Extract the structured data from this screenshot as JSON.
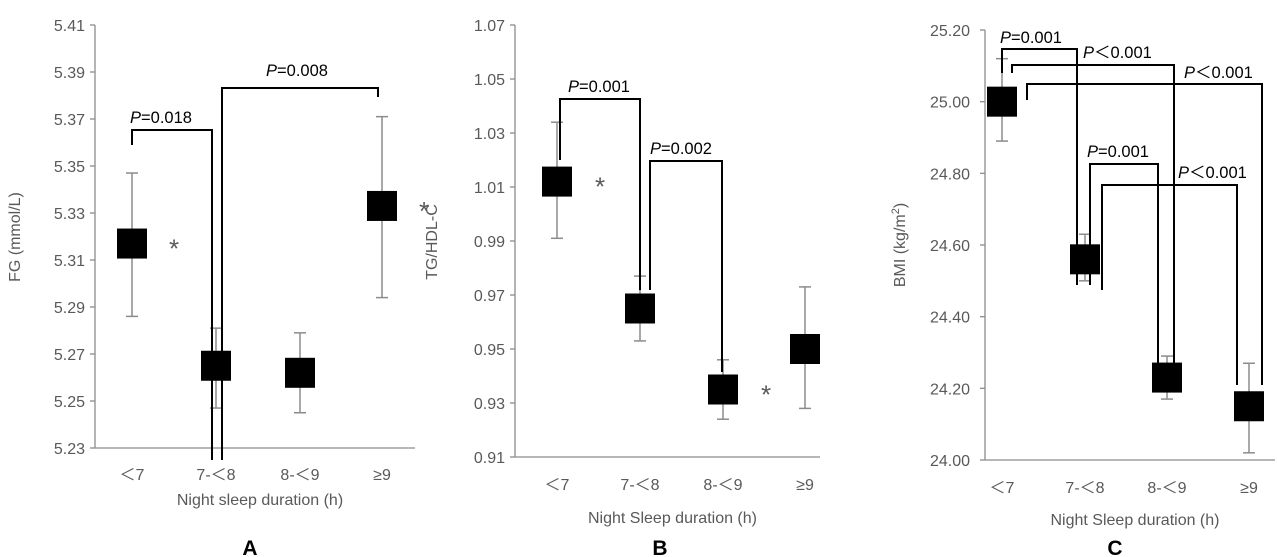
{
  "chart_data": [
    {
      "type": "scatter",
      "panel_label": "A",
      "xlabel": "Night sleep duration (h)",
      "ylabel": "FG (mmol/L)",
      "ylim": [
        5.23,
        5.41
      ],
      "yticks": [
        "5.23",
        "5.25",
        "5.27",
        "5.29",
        "5.31",
        "5.33",
        "5.35",
        "5.37",
        "5.39",
        "5.41"
      ],
      "categories": [
        "<7",
        "7-<8",
        "8-<9",
        "≥9"
      ],
      "values": [
        5.317,
        5.265,
        5.262,
        5.333
      ],
      "error_low": [
        5.286,
        5.247,
        5.245,
        5.294
      ],
      "error_high": [
        5.347,
        5.281,
        5.279,
        5.371
      ],
      "significance_marks": [
        "*",
        "",
        "",
        "*"
      ],
      "comparisons": [
        {
          "from": "<7",
          "to": "7-<8",
          "label": "P=0.018"
        },
        {
          "from": "7-<8",
          "to": "≥9",
          "label": "P=0.008"
        }
      ]
    },
    {
      "type": "scatter",
      "panel_label": "B",
      "xlabel": "Night Sleep duration (h)",
      "ylabel": "TG/HDL-C",
      "ylim": [
        0.91,
        1.07
      ],
      "yticks": [
        "0.91",
        "0.93",
        "0.95",
        "0.97",
        "0.99",
        "1.01",
        "1.03",
        "1.05",
        "1.07"
      ],
      "categories": [
        "<7",
        "7-<8",
        "8-<9",
        "≥9"
      ],
      "values": [
        1.012,
        0.965,
        0.935,
        0.95
      ],
      "error_low": [
        0.991,
        0.953,
        0.924,
        0.928
      ],
      "error_high": [
        1.034,
        0.977,
        0.946,
        0.973
      ],
      "significance_marks": [
        "*",
        "",
        "*",
        ""
      ],
      "comparisons": [
        {
          "from": "<7",
          "to": "7-<8",
          "label": "P=0.001"
        },
        {
          "from": "7-<8",
          "to": "8-<9",
          "label": "P=0.002"
        }
      ]
    },
    {
      "type": "scatter",
      "panel_label": "C",
      "xlabel": "Night Sleep duration (h)",
      "ylabel": "BMI (kg/m²)",
      "ylim": [
        24.0,
        25.2
      ],
      "yticks": [
        "24.00",
        "24.20",
        "24.40",
        "24.60",
        "24.80",
        "25.00",
        "25.20"
      ],
      "categories": [
        "<7",
        "7-<8",
        "8-<9",
        "≥9"
      ],
      "values": [
        25.0,
        24.56,
        24.23,
        24.15
      ],
      "error_low": [
        24.89,
        24.5,
        24.17,
        24.02
      ],
      "error_high": [
        25.12,
        24.63,
        24.29,
        24.27
      ],
      "significance_marks": [
        "",
        "",
        "",
        ""
      ],
      "comparisons": [
        {
          "from": "<7",
          "to": "7-<8",
          "label": "P=0.001"
        },
        {
          "from": "<7",
          "to": "8-<9",
          "label": "P<0.001"
        },
        {
          "from": "<7",
          "to": "≥9",
          "label": "P<0.001"
        },
        {
          "from": "7-<8",
          "to": "8-<9",
          "label": "P=0.001"
        },
        {
          "from": "7-<8",
          "to": "≥9",
          "label": "P<0.001"
        }
      ]
    }
  ]
}
